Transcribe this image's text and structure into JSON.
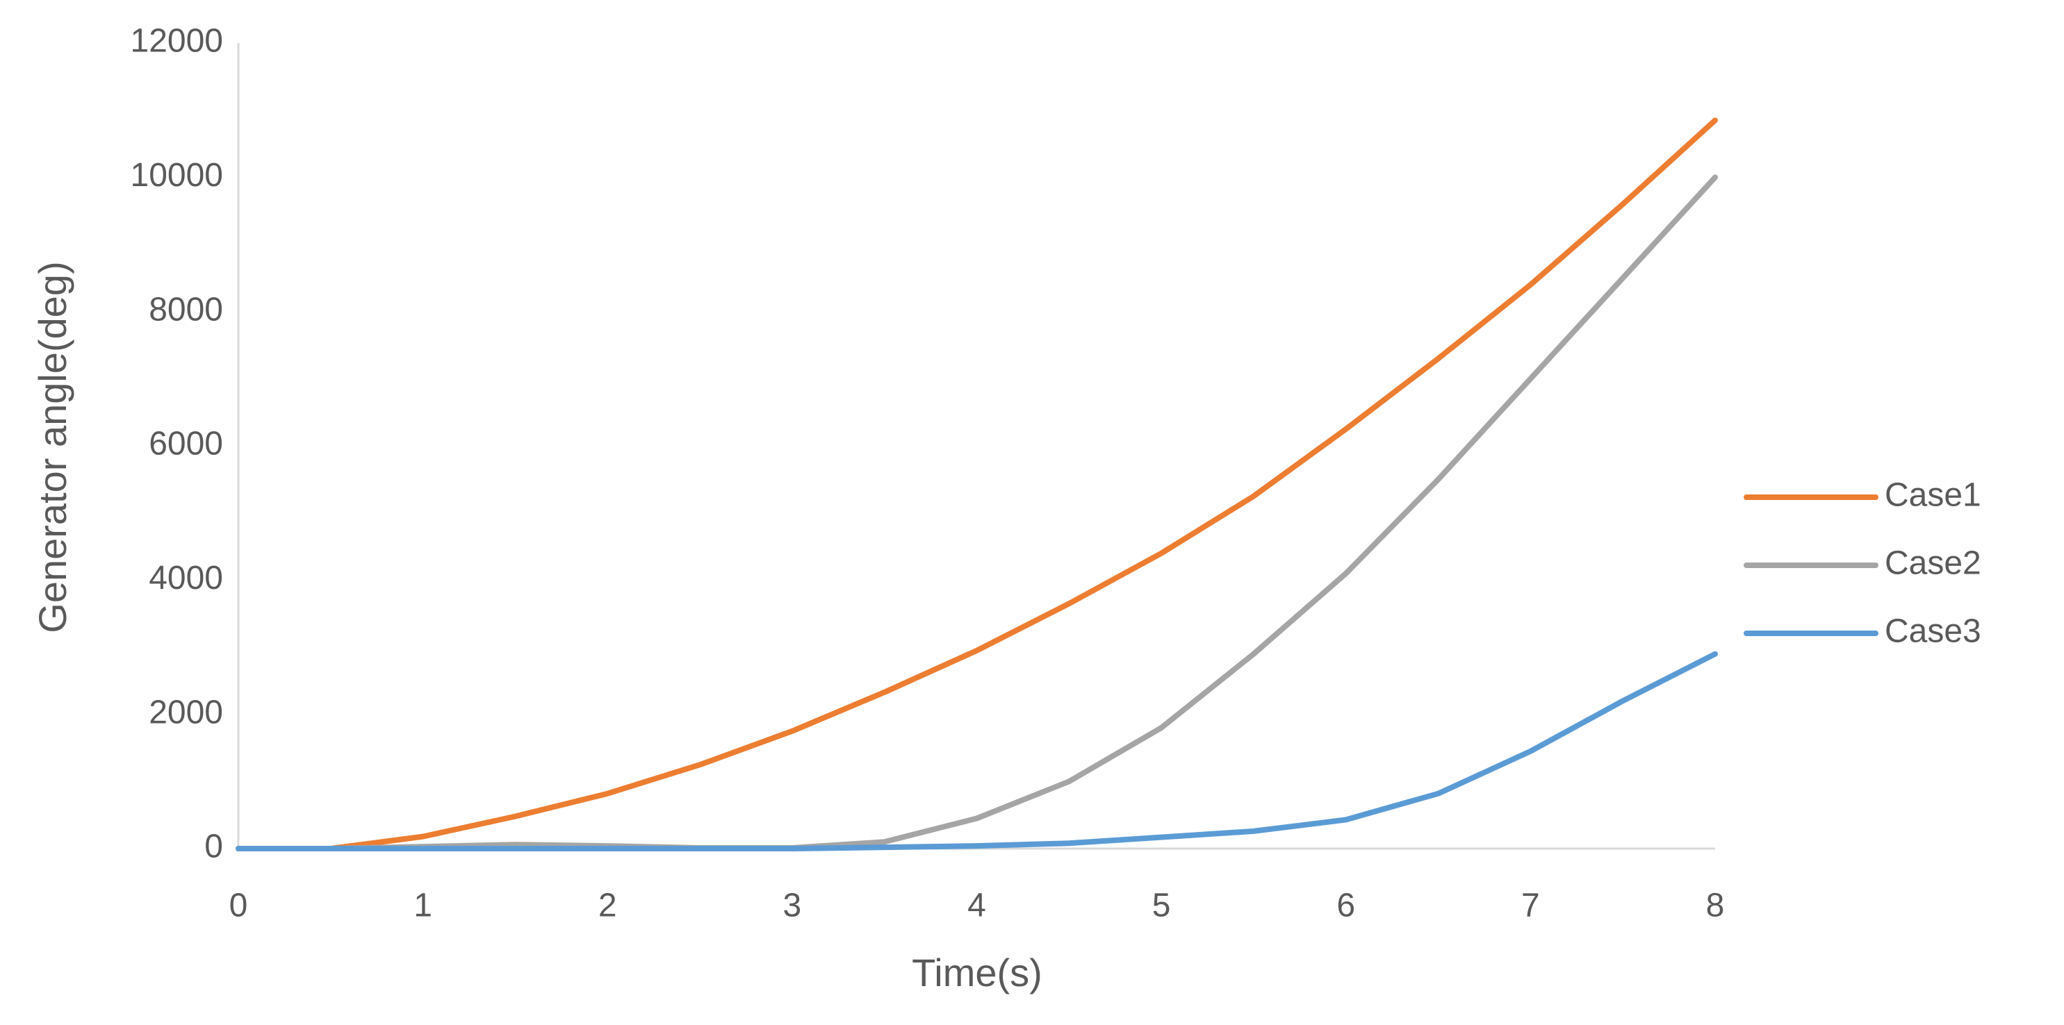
{
  "chart_data": {
    "type": "line",
    "x_label": "Time(s)",
    "y_label": "Generator angle(deg)",
    "x": [
      0,
      0.5,
      1,
      1.5,
      2,
      2.5,
      3,
      3.5,
      4,
      4.5,
      5,
      5.5,
      6,
      6.5,
      7,
      7.5,
      8
    ],
    "series": [
      {
        "name": "Case1",
        "color": "#ed7d31",
        "values": [
          0,
          0,
          180,
          480,
          820,
          1250,
          1750,
          2330,
          2950,
          3650,
          4400,
          5250,
          6250,
          7300,
          8400,
          9600,
          10850
        ]
      },
      {
        "name": "Case2",
        "color": "#a5a5a5",
        "values": [
          0,
          0,
          30,
          60,
          40,
          10,
          10,
          100,
          450,
          1000,
          1800,
          2900,
          4100,
          5500,
          7000,
          8500,
          10000
        ]
      },
      {
        "name": "Case3",
        "color": "#5b9bd5",
        "values": [
          0,
          0,
          0,
          0,
          0,
          0,
          0,
          20,
          40,
          80,
          170,
          260,
          430,
          820,
          1450,
          2200,
          2900
        ]
      }
    ],
    "xlim": [
      0,
      8
    ],
    "xticks": [
      0,
      1,
      2,
      3,
      4,
      5,
      6,
      7,
      8
    ],
    "ylim": [
      0,
      12000
    ],
    "yticks": [
      0,
      2000,
      4000,
      6000,
      8000,
      10000,
      12000
    ],
    "grid": false,
    "legend": "right"
  }
}
